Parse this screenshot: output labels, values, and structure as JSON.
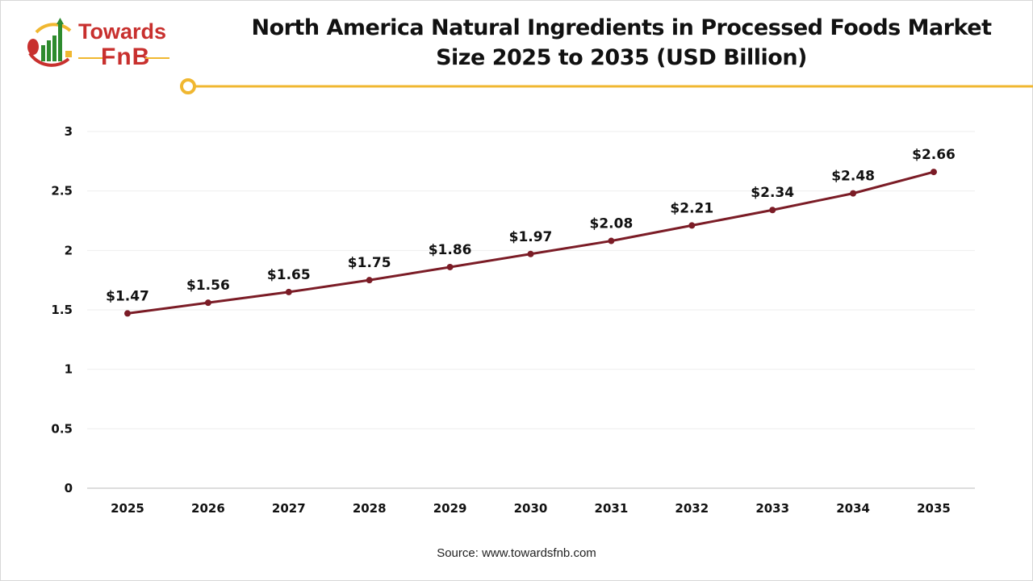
{
  "logo": {
    "line1": "Towards",
    "line2": "FnB"
  },
  "colors": {
    "line": "#7b1c26",
    "accent": "#f0b730",
    "brand_red": "#c8302e",
    "brand_green": "#2e8b2e",
    "grid": "#eeeeee"
  },
  "chart_data": {
    "type": "line",
    "title": "North America Natural Ingredients in Processed Foods Market Size 2025 to 2035 (USD Billion)",
    "title_lines": [
      "North America Natural Ingredients in Processed Foods Market",
      "Size 2025 to 2035 (USD Billion)"
    ],
    "categories": [
      "2025",
      "2026",
      "2027",
      "2028",
      "2029",
      "2030",
      "2031",
      "2032",
      "2033",
      "2034",
      "2035"
    ],
    "values": [
      1.47,
      1.56,
      1.65,
      1.75,
      1.86,
      1.97,
      2.08,
      2.21,
      2.34,
      2.48,
      2.66
    ],
    "data_labels": [
      "$1.47",
      "$1.56",
      "$1.65",
      "$1.75",
      "$1.86",
      "$1.97",
      "$2.08",
      "$2.21",
      "$2.34",
      "$2.48",
      "$2.66"
    ],
    "yticks": [
      "0",
      "0.5",
      "1",
      "1.5",
      "2",
      "2.5",
      "3"
    ],
    "ylim": [
      0,
      3
    ],
    "grid": true,
    "xlabel": "",
    "ylabel": ""
  },
  "source": "Source: www.towardsfnb.com"
}
